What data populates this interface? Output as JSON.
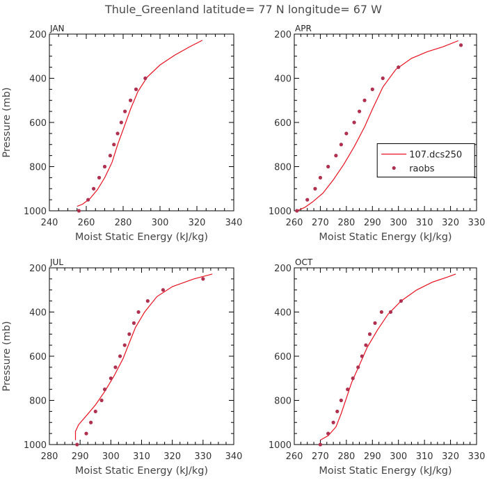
{
  "title": "Thule_Greenland  latitude= 77 N longitude= 67 W",
  "colors": {
    "model": "#e8101e",
    "obs": "#b03050"
  },
  "chart_data": [
    {
      "type": "line",
      "panel": "JAN",
      "xlabel": "Moist Static Energy (kJ/kg)",
      "ylabel": "Pressure (mb)",
      "xlim": [
        240,
        340
      ],
      "ylim": [
        200,
        1000
      ],
      "y_inverted": true,
      "xticks": [
        240,
        260,
        280,
        300,
        320,
        340
      ],
      "yticks": [
        200,
        400,
        600,
        800,
        1000
      ],
      "legend": null,
      "series": [
        {
          "kind": "line",
          "points": [
            [
              255,
              980
            ],
            [
              258,
              970
            ],
            [
              262,
              945
            ],
            [
              266,
              905
            ],
            [
              270,
              850
            ],
            [
              274,
              780
            ],
            [
              277,
              700
            ],
            [
              281,
              610
            ],
            [
              284,
              540
            ],
            [
              288,
              460
            ],
            [
              293,
              395
            ],
            [
              300,
              340
            ],
            [
              308,
              295
            ],
            [
              316,
              258
            ],
            [
              323,
              228
            ]
          ]
        },
        {
          "kind": "scatter",
          "points": [
            [
              256,
              1000
            ],
            [
              261,
              950
            ],
            [
              264,
              900
            ],
            [
              267,
              850
            ],
            [
              270,
              800
            ],
            [
              273,
              750
            ],
            [
              275,
              700
            ],
            [
              277,
              650
            ],
            [
              279,
              600
            ],
            [
              281,
              550
            ],
            [
              284,
              500
            ],
            [
              287,
              450
            ],
            [
              292,
              400
            ]
          ]
        }
      ]
    },
    {
      "type": "line",
      "panel": "APR",
      "xlabel": "Moist Static Energy (kJ/kg)",
      "ylabel": "",
      "xlim": [
        260,
        330
      ],
      "ylim": [
        200,
        1000
      ],
      "y_inverted": true,
      "xticks": [
        260,
        270,
        280,
        290,
        300,
        310,
        320,
        330
      ],
      "yticks": [
        200,
        400,
        600,
        800,
        1000
      ],
      "legend": {
        "position": "right-middle",
        "entries": [
          "107.dcs250",
          "raobs"
        ]
      },
      "series": [
        {
          "name": "107.dcs250",
          "kind": "line",
          "points": [
            [
              261,
              1000
            ],
            [
              264,
              985
            ],
            [
              267,
              960
            ],
            [
              271,
              920
            ],
            [
              275,
              860
            ],
            [
              279,
              790
            ],
            [
              283,
              710
            ],
            [
              287,
              620
            ],
            [
              290,
              540
            ],
            [
              294,
              440
            ],
            [
              299,
              360
            ],
            [
              305,
              310
            ],
            [
              311,
              280
            ],
            [
              317,
              258
            ],
            [
              323,
              230
            ]
          ]
        },
        {
          "name": "raobs",
          "kind": "scatter",
          "points": [
            [
              261,
              1000
            ],
            [
              265,
              950
            ],
            [
              268,
              900
            ],
            [
              270,
              850
            ],
            [
              273,
              800
            ],
            [
              276,
              750
            ],
            [
              278,
              700
            ],
            [
              280,
              650
            ],
            [
              283,
              600
            ],
            [
              285,
              550
            ],
            [
              287,
              500
            ],
            [
              290,
              450
            ],
            [
              294,
              400
            ],
            [
              300,
              350
            ],
            [
              324,
              250
            ]
          ]
        }
      ]
    },
    {
      "type": "line",
      "panel": "JUL",
      "xlabel": "Moist Static Energy (kJ/kg)",
      "ylabel": "Pressure (mb)",
      "xlim": [
        280,
        340
      ],
      "ylim": [
        200,
        1000
      ],
      "y_inverted": true,
      "xticks": [
        280,
        290,
        300,
        310,
        320,
        330,
        340
      ],
      "yticks": [
        200,
        400,
        600,
        800,
        1000
      ],
      "legend": null,
      "series": [
        {
          "kind": "line",
          "points": [
            [
              288.5,
              980
            ],
            [
              288.5,
              940
            ],
            [
              289.5,
              910
            ],
            [
              292,
              870
            ],
            [
              295,
              820
            ],
            [
              298,
              760
            ],
            [
              301,
              690
            ],
            [
              304,
              610
            ],
            [
              306,
              540
            ],
            [
              308,
              470
            ],
            [
              311,
              400
            ],
            [
              315,
              330
            ],
            [
              320,
              285
            ],
            [
              327,
              250
            ],
            [
              333,
              228
            ]
          ]
        },
        {
          "kind": "scatter",
          "points": [
            [
              289,
              1000
            ],
            [
              292,
              950
            ],
            [
              293.5,
              900
            ],
            [
              295,
              850
            ],
            [
              297,
              800
            ],
            [
              298,
              750
            ],
            [
              300,
              700
            ],
            [
              301.5,
              650
            ],
            [
              303,
              600
            ],
            [
              304.5,
              550
            ],
            [
              306,
              500
            ],
            [
              307.5,
              450
            ],
            [
              309,
              400
            ],
            [
              312,
              350
            ],
            [
              317,
              300
            ],
            [
              330,
              250
            ]
          ]
        }
      ]
    },
    {
      "type": "line",
      "panel": "OCT",
      "xlabel": "Moist Static Energy (kJ/kg)",
      "ylabel": "",
      "xlim": [
        260,
        330
      ],
      "ylim": [
        200,
        1000
      ],
      "y_inverted": true,
      "xticks": [
        260,
        270,
        280,
        290,
        300,
        310,
        320,
        330
      ],
      "yticks": [
        200,
        400,
        600,
        800,
        1000
      ],
      "legend": null,
      "series": [
        {
          "kind": "line",
          "points": [
            [
              270,
              980
            ],
            [
              273,
              960
            ],
            [
              276,
              920
            ],
            [
              278,
              860
            ],
            [
              280,
              790
            ],
            [
              282,
              720
            ],
            [
              285,
              640
            ],
            [
              288,
              560
            ],
            [
              292,
              480
            ],
            [
              296,
              410
            ],
            [
              301,
              350
            ],
            [
              307,
              300
            ],
            [
              313,
              265
            ],
            [
              318,
              245
            ],
            [
              322,
              228
            ]
          ]
        },
        {
          "kind": "scatter",
          "points": [
            [
              270,
              1000
            ],
            [
              273,
              950
            ],
            [
              275,
              900
            ],
            [
              276.5,
              850
            ],
            [
              278,
              800
            ],
            [
              280.5,
              750
            ],
            [
              282.5,
              700
            ],
            [
              284.5,
              650
            ],
            [
              286,
              600
            ],
            [
              287.5,
              550
            ],
            [
              289,
              500
            ],
            [
              291,
              450
            ],
            [
              293.5,
              400
            ],
            [
              297,
              400
            ],
            [
              301,
              350
            ]
          ]
        }
      ]
    }
  ]
}
